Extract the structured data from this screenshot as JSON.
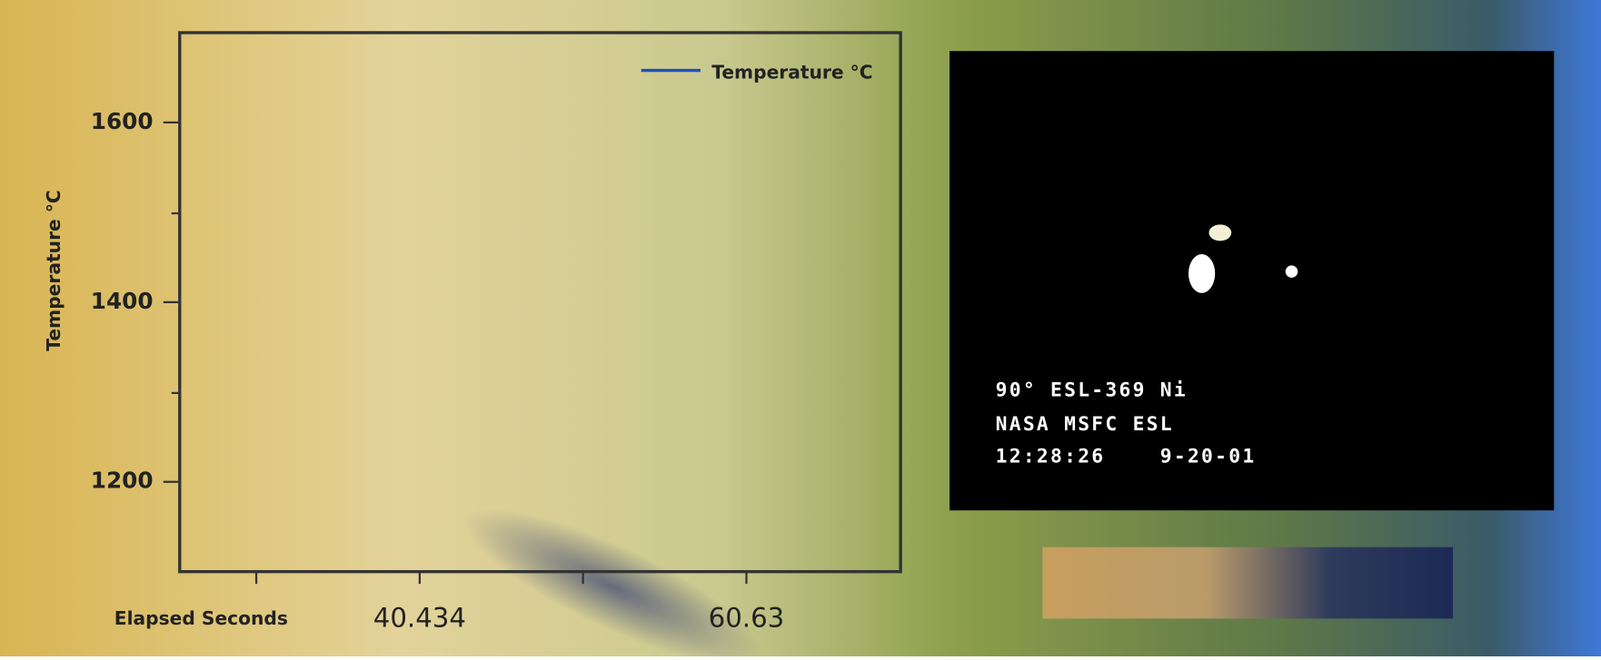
{
  "chart_data": {
    "type": "line",
    "x_label": "Elapsed Seconds",
    "y_label": "Temperature °C",
    "x": [],
    "series": [
      {
        "name": "Temperature °C",
        "color": "#1f4fbf",
        "values": []
      }
    ],
    "xlim": [
      25.6,
      70.16
    ],
    "xticks": [
      40.434,
      60.63
    ],
    "ylim": [
      1100,
      1700
    ],
    "yticks": [
      1200,
      1400,
      1600
    ],
    "legend": "upper right",
    "grid": false
  },
  "video": {
    "lines": [
      "90° ESL-369 Ni",
      "NASA MSFC ESL",
      "12:28:26    9-20-01"
    ]
  }
}
